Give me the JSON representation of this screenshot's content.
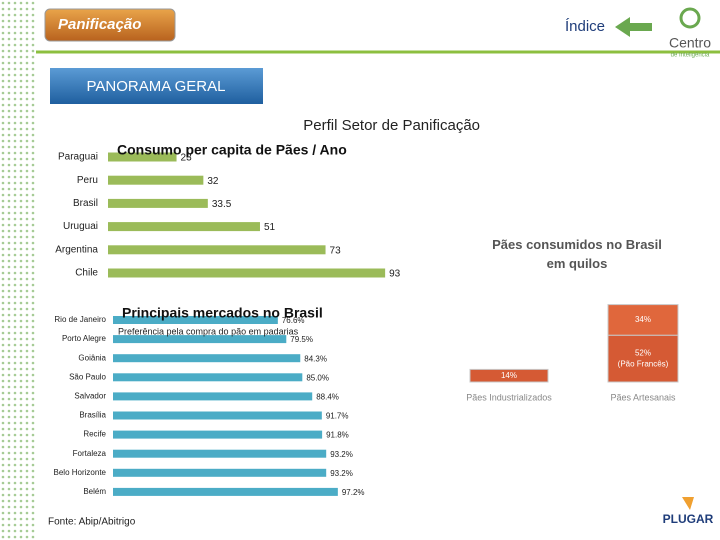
{
  "header": {
    "logo": "Panificação",
    "index_link": "Índice",
    "brand": "Centro",
    "brand_sub": "de Inteligência",
    "section": "PANORAMA GERAL",
    "page_title": "Perfil Setor de Panificação"
  },
  "footer": {
    "source": "Fonte: Abip/Abitrigo",
    "company": "PLUGAR"
  },
  "chart_data": [
    {
      "type": "hbar",
      "title": "Consumo per capita de Pães / Ano",
      "categories": [
        "Paraguai",
        "Peru",
        "Brasil",
        "Uruguai",
        "Argentina",
        "Chile"
      ],
      "values": [
        23,
        32,
        33.5,
        51,
        73,
        93
      ],
      "color": "#9bbb59",
      "xlim": [
        0,
        100
      ]
    },
    {
      "type": "hbar",
      "title": "Principais mercados no Brasil",
      "subtitle": "Preferência pela compra do pão em padarias",
      "categories": [
        "Rio de Janeiro",
        "Porto Alegre",
        "Goiânia",
        "São Paulo",
        "Salvador",
        "Brasília",
        "Recife",
        "Fortaleza",
        "Belo Horizonte",
        "Belém"
      ],
      "values": [
        76.6,
        79.5,
        84.3,
        85.0,
        88.4,
        91.7,
        91.8,
        93.2,
        93.2,
        97.2
      ],
      "value_labels": [
        "76.6%",
        "79.5%",
        "84.3%",
        "85.0%",
        "88.4%",
        "91.7%",
        "91.8%",
        "93.2%",
        "93.2%",
        "97.2%"
      ],
      "color": "#4bacc6",
      "xlim": [
        20,
        100
      ]
    },
    {
      "type": "stacked",
      "title": "Pães consumidos no Brasil em quilos",
      "categories": [
        "Pães Industrializados",
        "Pães Artesanais"
      ],
      "ylim": [
        0,
        100
      ],
      "series": [
        {
          "color": "#d55a34",
          "values": [
            14,
            52
          ],
          "value_labels": [
            "14%",
            "52% (Pão Francês)"
          ]
        },
        {
          "color": "#e0673c",
          "values": [
            null,
            34
          ],
          "value_labels": [
            null,
            "34%"
          ]
        }
      ]
    }
  ]
}
